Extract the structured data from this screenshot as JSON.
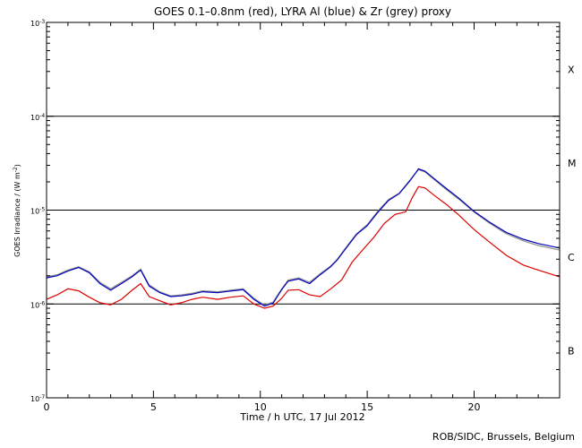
{
  "chart_data": {
    "type": "line",
    "title": "GOES 0.1–0.8nm (red), LYRA Al (blue) & Zr (grey) proxy",
    "xlabel": "Time / h UTC, 17 Jul 2012",
    "ylabel_main": "GOES Irradiance / (W m",
    "ylabel_sup": "-2",
    "ylabel_end": ")",
    "yscale": "log",
    "xlim": [
      0,
      24
    ],
    "ylim": [
      1e-07,
      0.001
    ],
    "x_ticks": [
      0,
      5,
      10,
      15,
      20
    ],
    "x_tick_labels": [
      "0",
      "5",
      "10",
      "15",
      "20"
    ],
    "y_ticks": [
      {
        "exp": -7,
        "label": "10",
        "sup": "-7"
      },
      {
        "exp": -6,
        "label": "10",
        "sup": "-6"
      },
      {
        "exp": -5,
        "label": "10",
        "sup": "-5"
      },
      {
        "exp": -4,
        "label": "10",
        "sup": "-4"
      },
      {
        "exp": -3,
        "label": "10",
        "sup": "-3"
      }
    ],
    "flare_class_lines": [
      1e-06,
      1e-05,
      0.0001
    ],
    "flare_class_labels": [
      {
        "label": "B",
        "value": 3.16e-07
      },
      {
        "label": "C",
        "value": 3.16e-06
      },
      {
        "label": "M",
        "value": 3.16e-05
      },
      {
        "label": "X",
        "value": 0.000316
      }
    ],
    "series": [
      {
        "name": "LYRA Zr proxy",
        "color": "#909090",
        "points": [
          [
            0,
            1.95e-06
          ],
          [
            0.5,
            2.05e-06
          ],
          [
            1,
            2.3e-06
          ],
          [
            1.5,
            2.5e-06
          ],
          [
            2,
            2.2e-06
          ],
          [
            2.5,
            1.7e-06
          ],
          [
            3,
            1.45e-06
          ],
          [
            3.5,
            1.7e-06
          ],
          [
            4,
            2e-06
          ],
          [
            4.4,
            2.35e-06
          ],
          [
            4.8,
            1.6e-06
          ],
          [
            5.3,
            1.35e-06
          ],
          [
            5.8,
            1.22e-06
          ],
          [
            6.3,
            1.25e-06
          ],
          [
            6.8,
            1.3e-06
          ],
          [
            7.3,
            1.38e-06
          ],
          [
            8,
            1.35e-06
          ],
          [
            8.6,
            1.4e-06
          ],
          [
            9.2,
            1.45e-06
          ],
          [
            9.7,
            1.15e-06
          ],
          [
            10.2,
            9.7e-07
          ],
          [
            10.6,
            1.05e-06
          ],
          [
            11,
            1.45e-06
          ],
          [
            11.3,
            1.8e-06
          ],
          [
            11.8,
            1.9e-06
          ],
          [
            12.3,
            1.7e-06
          ],
          [
            12.8,
            2.1e-06
          ],
          [
            13.3,
            2.55e-06
          ],
          [
            13.6,
            3e-06
          ],
          [
            14,
            4e-06
          ],
          [
            14.5,
            5.6e-06
          ],
          [
            15,
            7e-06
          ],
          [
            15.5,
            9.8e-06
          ],
          [
            16,
            1.3e-05
          ],
          [
            16.5,
            1.52e-05
          ],
          [
            17,
            2.1e-05
          ],
          [
            17.4,
            2.7e-05
          ],
          [
            17.7,
            2.55e-05
          ],
          [
            18.2,
            2.05e-05
          ],
          [
            18.7,
            1.65e-05
          ],
          [
            19.3,
            1.3e-05
          ],
          [
            20,
            9.5e-06
          ],
          [
            20.7,
            7.3e-06
          ],
          [
            21.5,
            5.6e-06
          ],
          [
            22.3,
            4.7e-06
          ],
          [
            23,
            4.2e-06
          ],
          [
            24,
            3.75e-06
          ]
        ]
      },
      {
        "name": "LYRA Al proxy",
        "color": "#0000bb",
        "points": [
          [
            0,
            1.9e-06
          ],
          [
            0.5,
            2e-06
          ],
          [
            1,
            2.25e-06
          ],
          [
            1.5,
            2.45e-06
          ],
          [
            2,
            2.15e-06
          ],
          [
            2.5,
            1.65e-06
          ],
          [
            3,
            1.4e-06
          ],
          [
            3.5,
            1.65e-06
          ],
          [
            4,
            1.95e-06
          ],
          [
            4.4,
            2.3e-06
          ],
          [
            4.8,
            1.55e-06
          ],
          [
            5.3,
            1.32e-06
          ],
          [
            5.8,
            1.2e-06
          ],
          [
            6.3,
            1.22e-06
          ],
          [
            6.8,
            1.27e-06
          ],
          [
            7.3,
            1.35e-06
          ],
          [
            8,
            1.32e-06
          ],
          [
            8.6,
            1.37e-06
          ],
          [
            9.2,
            1.42e-06
          ],
          [
            9.7,
            1.12e-06
          ],
          [
            10.2,
            9.5e-07
          ],
          [
            10.6,
            1.02e-06
          ],
          [
            11,
            1.42e-06
          ],
          [
            11.3,
            1.75e-06
          ],
          [
            11.8,
            1.85e-06
          ],
          [
            12.3,
            1.65e-06
          ],
          [
            12.8,
            2.05e-06
          ],
          [
            13.3,
            2.5e-06
          ],
          [
            13.6,
            2.95e-06
          ],
          [
            14,
            3.9e-06
          ],
          [
            14.5,
            5.5e-06
          ],
          [
            15,
            6.8e-06
          ],
          [
            15.5,
            9.5e-06
          ],
          [
            16,
            1.27e-05
          ],
          [
            16.5,
            1.5e-05
          ],
          [
            17,
            2.05e-05
          ],
          [
            17.4,
            2.75e-05
          ],
          [
            17.7,
            2.6e-05
          ],
          [
            18.2,
            2.1e-05
          ],
          [
            18.7,
            1.7e-05
          ],
          [
            19.3,
            1.33e-05
          ],
          [
            20,
            9.7e-06
          ],
          [
            20.7,
            7.5e-06
          ],
          [
            21.5,
            5.8e-06
          ],
          [
            22.3,
            4.9e-06
          ],
          [
            23,
            4.4e-06
          ],
          [
            24,
            3.95e-06
          ]
        ]
      },
      {
        "name": "GOES 0.1-0.8nm",
        "color": "#dd0000",
        "points": [
          [
            0,
            1.12e-06
          ],
          [
            0.5,
            1.25e-06
          ],
          [
            1,
            1.45e-06
          ],
          [
            1.5,
            1.38e-06
          ],
          [
            2,
            1.18e-06
          ],
          [
            2.5,
            1.03e-06
          ],
          [
            3,
            9.8e-07
          ],
          [
            3.5,
            1.12e-06
          ],
          [
            4,
            1.4e-06
          ],
          [
            4.4,
            1.65e-06
          ],
          [
            4.8,
            1.2e-06
          ],
          [
            5.3,
            1.08e-06
          ],
          [
            5.8,
            9.8e-07
          ],
          [
            6.3,
            1.03e-06
          ],
          [
            6.8,
            1.12e-06
          ],
          [
            7.3,
            1.18e-06
          ],
          [
            8,
            1.12e-06
          ],
          [
            8.6,
            1.18e-06
          ],
          [
            9.2,
            1.22e-06
          ],
          [
            9.7,
            1e-06
          ],
          [
            10.2,
            9e-07
          ],
          [
            10.6,
            9.5e-07
          ],
          [
            11,
            1.15e-06
          ],
          [
            11.3,
            1.4e-06
          ],
          [
            11.8,
            1.42e-06
          ],
          [
            12.3,
            1.25e-06
          ],
          [
            12.8,
            1.2e-06
          ],
          [
            13.3,
            1.45e-06
          ],
          [
            13.8,
            1.8e-06
          ],
          [
            14.3,
            2.8e-06
          ],
          [
            14.8,
            3.8e-06
          ],
          [
            15.3,
            5.1e-06
          ],
          [
            15.8,
            7.2e-06
          ],
          [
            16.3,
            9e-06
          ],
          [
            16.8,
            9.6e-06
          ],
          [
            17.1,
            1.35e-05
          ],
          [
            17.4,
            1.78e-05
          ],
          [
            17.7,
            1.72e-05
          ],
          [
            18.2,
            1.4e-05
          ],
          [
            18.7,
            1.15e-05
          ],
          [
            19.3,
            8.8e-06
          ],
          [
            20,
            6.2e-06
          ],
          [
            20.7,
            4.6e-06
          ],
          [
            21.5,
            3.3e-06
          ],
          [
            22.3,
            2.6e-06
          ],
          [
            23,
            2.3e-06
          ],
          [
            24,
            1.95e-06
          ]
        ]
      }
    ]
  },
  "credit": "ROB/SIDC, Brussels, Belgium"
}
